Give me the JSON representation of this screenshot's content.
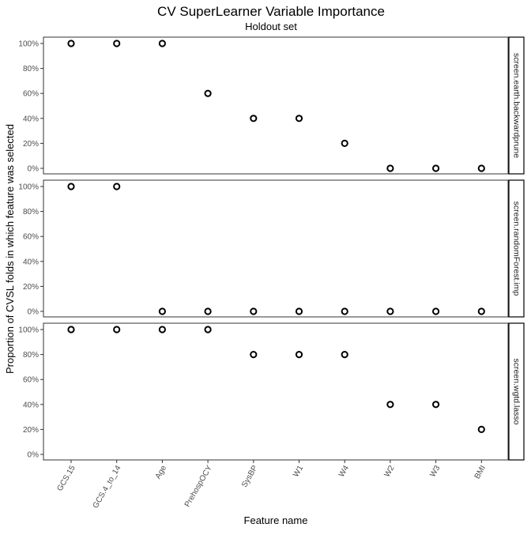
{
  "chart_data": {
    "type": "scatter",
    "title": "CV SuperLearner Variable Importance",
    "subtitle": "Holdout set",
    "xlabel": "Feature name",
    "ylabel": "Proportion of CVSL folds in which feature was selected",
    "categories": [
      "GCS.15",
      "GCS.4_to_14",
      "Age",
      "PrehospOCY",
      "SysBP",
      "W1",
      "W4",
      "W2",
      "W3",
      "BMI"
    ],
    "yticks": [
      0,
      0.2,
      0.4,
      0.6,
      0.8,
      1.0
    ],
    "ytick_labels": [
      "0%",
      "20%",
      "40%",
      "60%",
      "80%",
      "100%"
    ],
    "ylim": [
      0,
      1
    ],
    "grid": false,
    "facets": [
      {
        "name": "screen.earth.backwardprune",
        "values": [
          1.0,
          1.0,
          1.0,
          0.6,
          0.4,
          0.4,
          0.2,
          0.0,
          0.0,
          0.0
        ]
      },
      {
        "name": "screen.randomForest.imp",
        "values": [
          1.0,
          1.0,
          0.0,
          0.0,
          0.0,
          0.0,
          0.0,
          0.0,
          0.0,
          0.0
        ]
      },
      {
        "name": "screen.wgtd.lasso",
        "values": [
          1.0,
          1.0,
          1.0,
          1.0,
          0.8,
          0.8,
          0.8,
          0.4,
          0.4,
          0.2
        ]
      }
    ]
  }
}
